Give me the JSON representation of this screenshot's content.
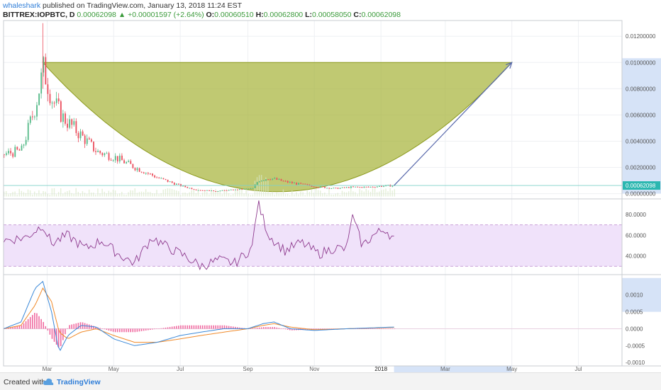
{
  "header": {
    "author": "whaleshark",
    "published": " published on TradingView.com, January 13, 2018 11:24 EST",
    "symbol": "BITTREX:IOPBTC, D",
    "price": "0.00062098",
    "change": "+0.00001597 (+2.64%)",
    "o_label": "O:",
    "o_value": "0.00060510",
    "h_label": "H:",
    "h_value": "0.00062800",
    "l_label": "L:",
    "l_value": "0.00058050",
    "c_label": "C:",
    "c_value": "0.00062098"
  },
  "footer": {
    "created_with": "Created with",
    "brand": "TradingView"
  },
  "colors": {
    "up": "#53b987",
    "down": "#eb4d5c",
    "cup_fill": "#a8b43c",
    "arrow": "#5566aa",
    "rsi_line": "#8e3a8e",
    "rsi_band": "#f0e2fa",
    "macd_line": "#3a88d8",
    "signal_line": "#f08a2a",
    "hist": "#f06aa0",
    "last_price_tag": "#2bb7b0",
    "axis_highlight": "#d6e3f7"
  },
  "chart_data": [
    {
      "type": "candlestick",
      "title": "BITTREX:IOPBTC, D",
      "x_ticks": [
        "Mar",
        "May",
        "Jul",
        "Sep",
        "Nov",
        "2018",
        "Mar",
        "May",
        "Jul"
      ],
      "y_ticks": [
        "0.01200000",
        "0.01000000",
        "0.00800000",
        "0.00600000",
        "0.00400000",
        "0.00200000",
        "0.00000000"
      ],
      "ylim": [
        -0.0004,
        0.0132
      ],
      "last_price": "0.00062098",
      "price_path": {
        "dates": [
          "2017-01-20",
          "2017-02-05",
          "2017-02-18",
          "2017-02-25",
          "2017-03-05",
          "2017-03-15",
          "2017-04-01",
          "2017-04-15",
          "2017-05-01",
          "2017-05-20",
          "2017-06-10",
          "2017-07-01",
          "2017-07-15",
          "2017-08-01",
          "2017-08-20",
          "2017-09-05",
          "2017-09-10",
          "2017-09-20",
          "2017-10-05",
          "2017-10-20",
          "2017-11-05",
          "2017-11-20",
          "2017-12-05",
          "2017-12-20",
          "2018-01-05",
          "2018-01-13"
        ],
        "values": [
          0.003,
          0.0033,
          0.0068,
          0.0095,
          0.0072,
          0.0058,
          0.0044,
          0.0032,
          0.0028,
          0.002,
          0.0012,
          0.0006,
          0.0003,
          0.0002,
          0.0003,
          0.0004,
          0.001,
          0.0012,
          0.0009,
          0.0007,
          0.0005,
          0.0004,
          0.0005,
          0.0005,
          0.0006,
          0.00062098
        ]
      },
      "annotations": [
        {
          "kind": "cup-shape",
          "from": "2017-02-25",
          "to": "2018-05-01",
          "top": 0.01,
          "bottom": 0.00015
        },
        {
          "kind": "arrow",
          "from_date": "2018-01-13",
          "from_value": 0.00062,
          "to_date": "2018-05-01",
          "to_value": 0.01
        }
      ]
    },
    {
      "type": "line",
      "name": "RSI",
      "y_ticks": [
        "80.0000",
        "60.0000",
        "40.0000"
      ],
      "ylim": [
        22,
        95
      ],
      "band": [
        30,
        70
      ],
      "dates": [
        "2017-01-20",
        "2017-02-10",
        "2017-02-25",
        "2017-03-05",
        "2017-03-20",
        "2017-04-05",
        "2017-04-20",
        "2017-05-05",
        "2017-05-20",
        "2017-06-05",
        "2017-06-20",
        "2017-07-05",
        "2017-07-20",
        "2017-08-05",
        "2017-08-20",
        "2017-09-05",
        "2017-09-10",
        "2017-09-20",
        "2017-10-05",
        "2017-10-20",
        "2017-11-05",
        "2017-11-20",
        "2017-12-01",
        "2017-12-05",
        "2017-12-15",
        "2017-12-25",
        "2018-01-05",
        "2018-01-13"
      ],
      "values": [
        55,
        58,
        70,
        52,
        60,
        47,
        55,
        42,
        33,
        58,
        48,
        40,
        30,
        36,
        33,
        48,
        92,
        60,
        45,
        53,
        42,
        48,
        46,
        80,
        50,
        60,
        66,
        56
      ]
    },
    {
      "type": "line+bar",
      "name": "MACD",
      "y_ticks": [
        "0.0010",
        "0.0005",
        "0.0000",
        "-0.0005",
        "-0.0010"
      ],
      "ylim": [
        -0.0011,
        0.0016
      ],
      "dates": [
        "2017-01-20",
        "2017-02-05",
        "2017-02-18",
        "2017-02-25",
        "2017-03-05",
        "2017-03-12",
        "2017-03-20",
        "2017-04-01",
        "2017-04-15",
        "2017-05-01",
        "2017-05-20",
        "2017-06-10",
        "2017-07-01",
        "2017-07-20",
        "2017-08-10",
        "2017-09-01",
        "2017-09-15",
        "2017-09-25",
        "2017-10-10",
        "2017-11-01",
        "2017-12-01",
        "2018-01-13"
      ],
      "macd": [
        0.0,
        0.0002,
        0.0012,
        0.0014,
        0.0005,
        -0.0007,
        -0.0002,
        0.0001,
        5e-05,
        -0.0003,
        -0.0005,
        -0.0004,
        -0.0002,
        -0.0001,
        0.0,
        0.0,
        0.00015,
        0.0002,
        0.0,
        -5e-05,
        0.0,
        5e-05
      ],
      "signal": [
        0.0,
        0.0001,
        0.0007,
        0.0012,
        0.0008,
        -0.0001,
        -0.0003,
        -0.0001,
        0.0,
        -0.0002,
        -0.0004,
        -0.0004,
        -0.0003,
        -0.0002,
        -0.0001,
        0.0,
        0.0001,
        0.00015,
        5e-05,
        -3e-05,
        0.0,
        4e-05
      ]
    }
  ]
}
